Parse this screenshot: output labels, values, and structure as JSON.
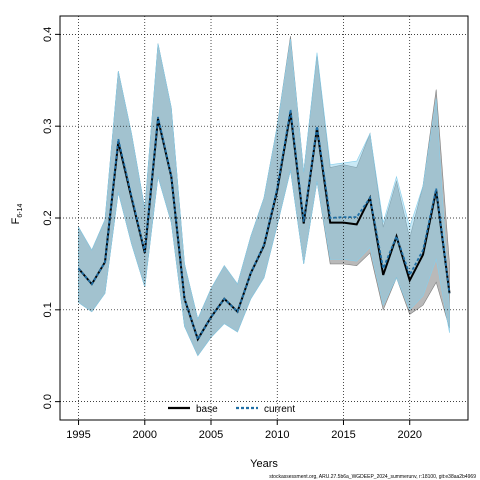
{
  "chart_data": {
    "type": "line",
    "xlabel": "Years",
    "ylabel": "F",
    "ylabel_sub": "6-14",
    "xlim": [
      1993.6,
      2024.4
    ],
    "ylim": [
      -0.02,
      0.42
    ],
    "xticks": [
      1995,
      2000,
      2005,
      2010,
      2015,
      2020
    ],
    "yticks": [
      0.0,
      0.1,
      0.2,
      0.3,
      0.4
    ],
    "ytick_labels": [
      "0.0",
      "0.1",
      "0.2",
      "0.3",
      "0.4"
    ],
    "grid": true,
    "legend_position": "bottom-center",
    "footer": "stockassessment.org, ARU.27.5b6a_WGDEEP_2024_summerunv, r:18100, git:e38aa2b4969",
    "x": [
      1995,
      1996,
      1997,
      1998,
      1999,
      2000,
      2001,
      2002,
      2003,
      2004,
      2005,
      2006,
      2007,
      2008,
      2009,
      2010,
      2011,
      2012,
      2013,
      2014,
      2015,
      2016,
      2017,
      2018,
      2019,
      2020,
      2021,
      2022,
      2023
    ],
    "series": [
      {
        "name": "base",
        "color": "#000000",
        "band_color": "#808080",
        "values": [
          0.145,
          0.128,
          0.152,
          0.283,
          0.222,
          0.162,
          0.308,
          0.245,
          0.112,
          0.068,
          0.092,
          0.112,
          0.098,
          0.14,
          0.17,
          0.23,
          0.315,
          0.194,
          0.298,
          0.195,
          0.195,
          0.193,
          0.222,
          0.138,
          0.18,
          0.132,
          0.16,
          0.23,
          0.118
        ],
        "lower": [
          0.108,
          0.098,
          0.118,
          0.228,
          0.172,
          0.125,
          0.245,
          0.195,
          0.082,
          0.05,
          0.07,
          0.085,
          0.076,
          0.112,
          0.135,
          0.192,
          0.252,
          0.15,
          0.24,
          0.15,
          0.15,
          0.148,
          0.162,
          0.1,
          0.135,
          0.095,
          0.105,
          0.13,
          0.08
        ],
        "upper": [
          0.19,
          0.165,
          0.198,
          0.36,
          0.292,
          0.21,
          0.39,
          0.32,
          0.15,
          0.09,
          0.123,
          0.148,
          0.128,
          0.18,
          0.222,
          0.3,
          0.398,
          0.25,
          0.378,
          0.255,
          0.258,
          0.255,
          0.292,
          0.19,
          0.24,
          0.178,
          0.235,
          0.34,
          0.15
        ]
      },
      {
        "name": "current",
        "color": "#1f6fa6",
        "band_color": "#87ceeb",
        "values": [
          0.145,
          0.128,
          0.152,
          0.286,
          0.224,
          0.163,
          0.31,
          0.246,
          0.112,
          0.068,
          0.092,
          0.112,
          0.098,
          0.14,
          0.171,
          0.232,
          0.318,
          0.196,
          0.3,
          0.2,
          0.201,
          0.201,
          0.222,
          0.145,
          0.18,
          0.138,
          0.165,
          0.232,
          0.118
        ],
        "lower": [
          0.108,
          0.098,
          0.118,
          0.228,
          0.172,
          0.125,
          0.245,
          0.195,
          0.082,
          0.05,
          0.07,
          0.085,
          0.076,
          0.112,
          0.135,
          0.192,
          0.252,
          0.15,
          0.24,
          0.155,
          0.155,
          0.153,
          0.168,
          0.105,
          0.135,
          0.1,
          0.115,
          0.155,
          0.075
        ],
        "upper": [
          0.19,
          0.165,
          0.198,
          0.36,
          0.292,
          0.21,
          0.39,
          0.32,
          0.15,
          0.09,
          0.123,
          0.148,
          0.128,
          0.18,
          0.222,
          0.3,
          0.395,
          0.25,
          0.38,
          0.258,
          0.26,
          0.262,
          0.292,
          0.195,
          0.245,
          0.19,
          0.235,
          0.33,
          0.1
        ]
      }
    ]
  }
}
